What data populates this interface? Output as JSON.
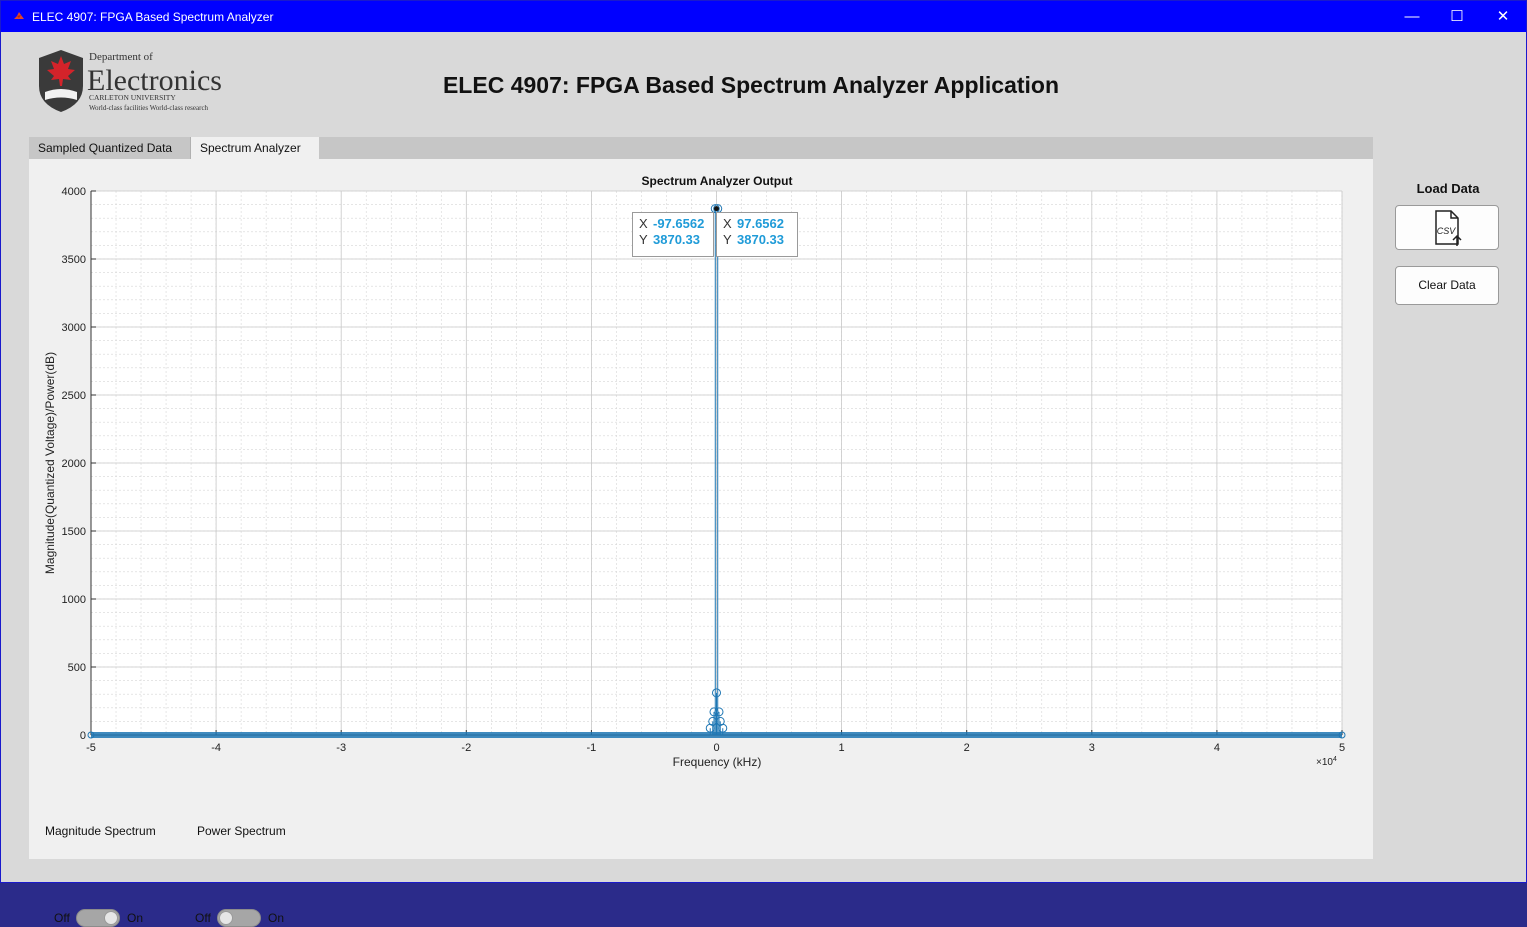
{
  "window": {
    "title": "ELEC 4907: FPGA Based Spectrum Analyzer",
    "minimize_glyph": "—",
    "maximize_glyph": "☐",
    "close_glyph": "✕"
  },
  "logo": {
    "dept": "Department of",
    "name": "Electronics",
    "university": "CARLETON UNIVERSITY",
    "tagline": "World-class facilities World-class research"
  },
  "heading": "ELEC 4907: FPGA Based Spectrum Analyzer Application",
  "tabs": [
    {
      "label": "Sampled Quantized Data",
      "selected": false
    },
    {
      "label": "Spectrum Analyzer",
      "selected": true
    }
  ],
  "side": {
    "load_title": "Load Data",
    "load_icon": "csv-upload-icon",
    "load_icon_text": "CSV",
    "clear_label": "Clear Data"
  },
  "switches": [
    {
      "off": "Off",
      "on": "On",
      "caption": "Magnitude Spectrum",
      "state": "on"
    },
    {
      "off": "Off",
      "on": "On",
      "caption": "Power Spectrum",
      "state": "off"
    }
  ],
  "chart_data": {
    "type": "line",
    "title": "Spectrum Analyzer Output",
    "xlabel": "Frequency (kHz)",
    "ylabel": "Magnitude(Quantized Voltage)/Power(dB)",
    "x_exponent_label": "×10",
    "x_exponent": "4",
    "xlim": [
      -5,
      5
    ],
    "ylim": [
      0,
      4000
    ],
    "x_ticks": [
      -5,
      -4,
      -3,
      -2,
      -1,
      0,
      1,
      2,
      3,
      4,
      5
    ],
    "y_ticks": [
      0,
      500,
      1000,
      1500,
      2000,
      2500,
      3000,
      3500,
      4000
    ],
    "grid": true,
    "minor_grid": true,
    "marker": "circle",
    "color": "#1f77b4",
    "peak_points": [
      {
        "x": -0.009765625,
        "y": 3870.33
      },
      {
        "x": 0.009765625,
        "y": 3870.33
      },
      {
        "x": 0.0,
        "y": 310
      },
      {
        "x": -0.02,
        "y": 170
      },
      {
        "x": 0.02,
        "y": 170
      },
      {
        "x": -0.03,
        "y": 100
      },
      {
        "x": 0.03,
        "y": 100
      },
      {
        "x": -0.05,
        "y": 50
      },
      {
        "x": 0.05,
        "y": 50
      }
    ],
    "baseline_y": 0,
    "datatips": [
      {
        "x_label": "X",
        "x_value": "-97.6562",
        "y_label": "Y",
        "y_value": "3870.33"
      },
      {
        "x_label": "X",
        "x_value": "97.6562",
        "y_label": "Y",
        "y_value": "3870.33"
      }
    ]
  }
}
